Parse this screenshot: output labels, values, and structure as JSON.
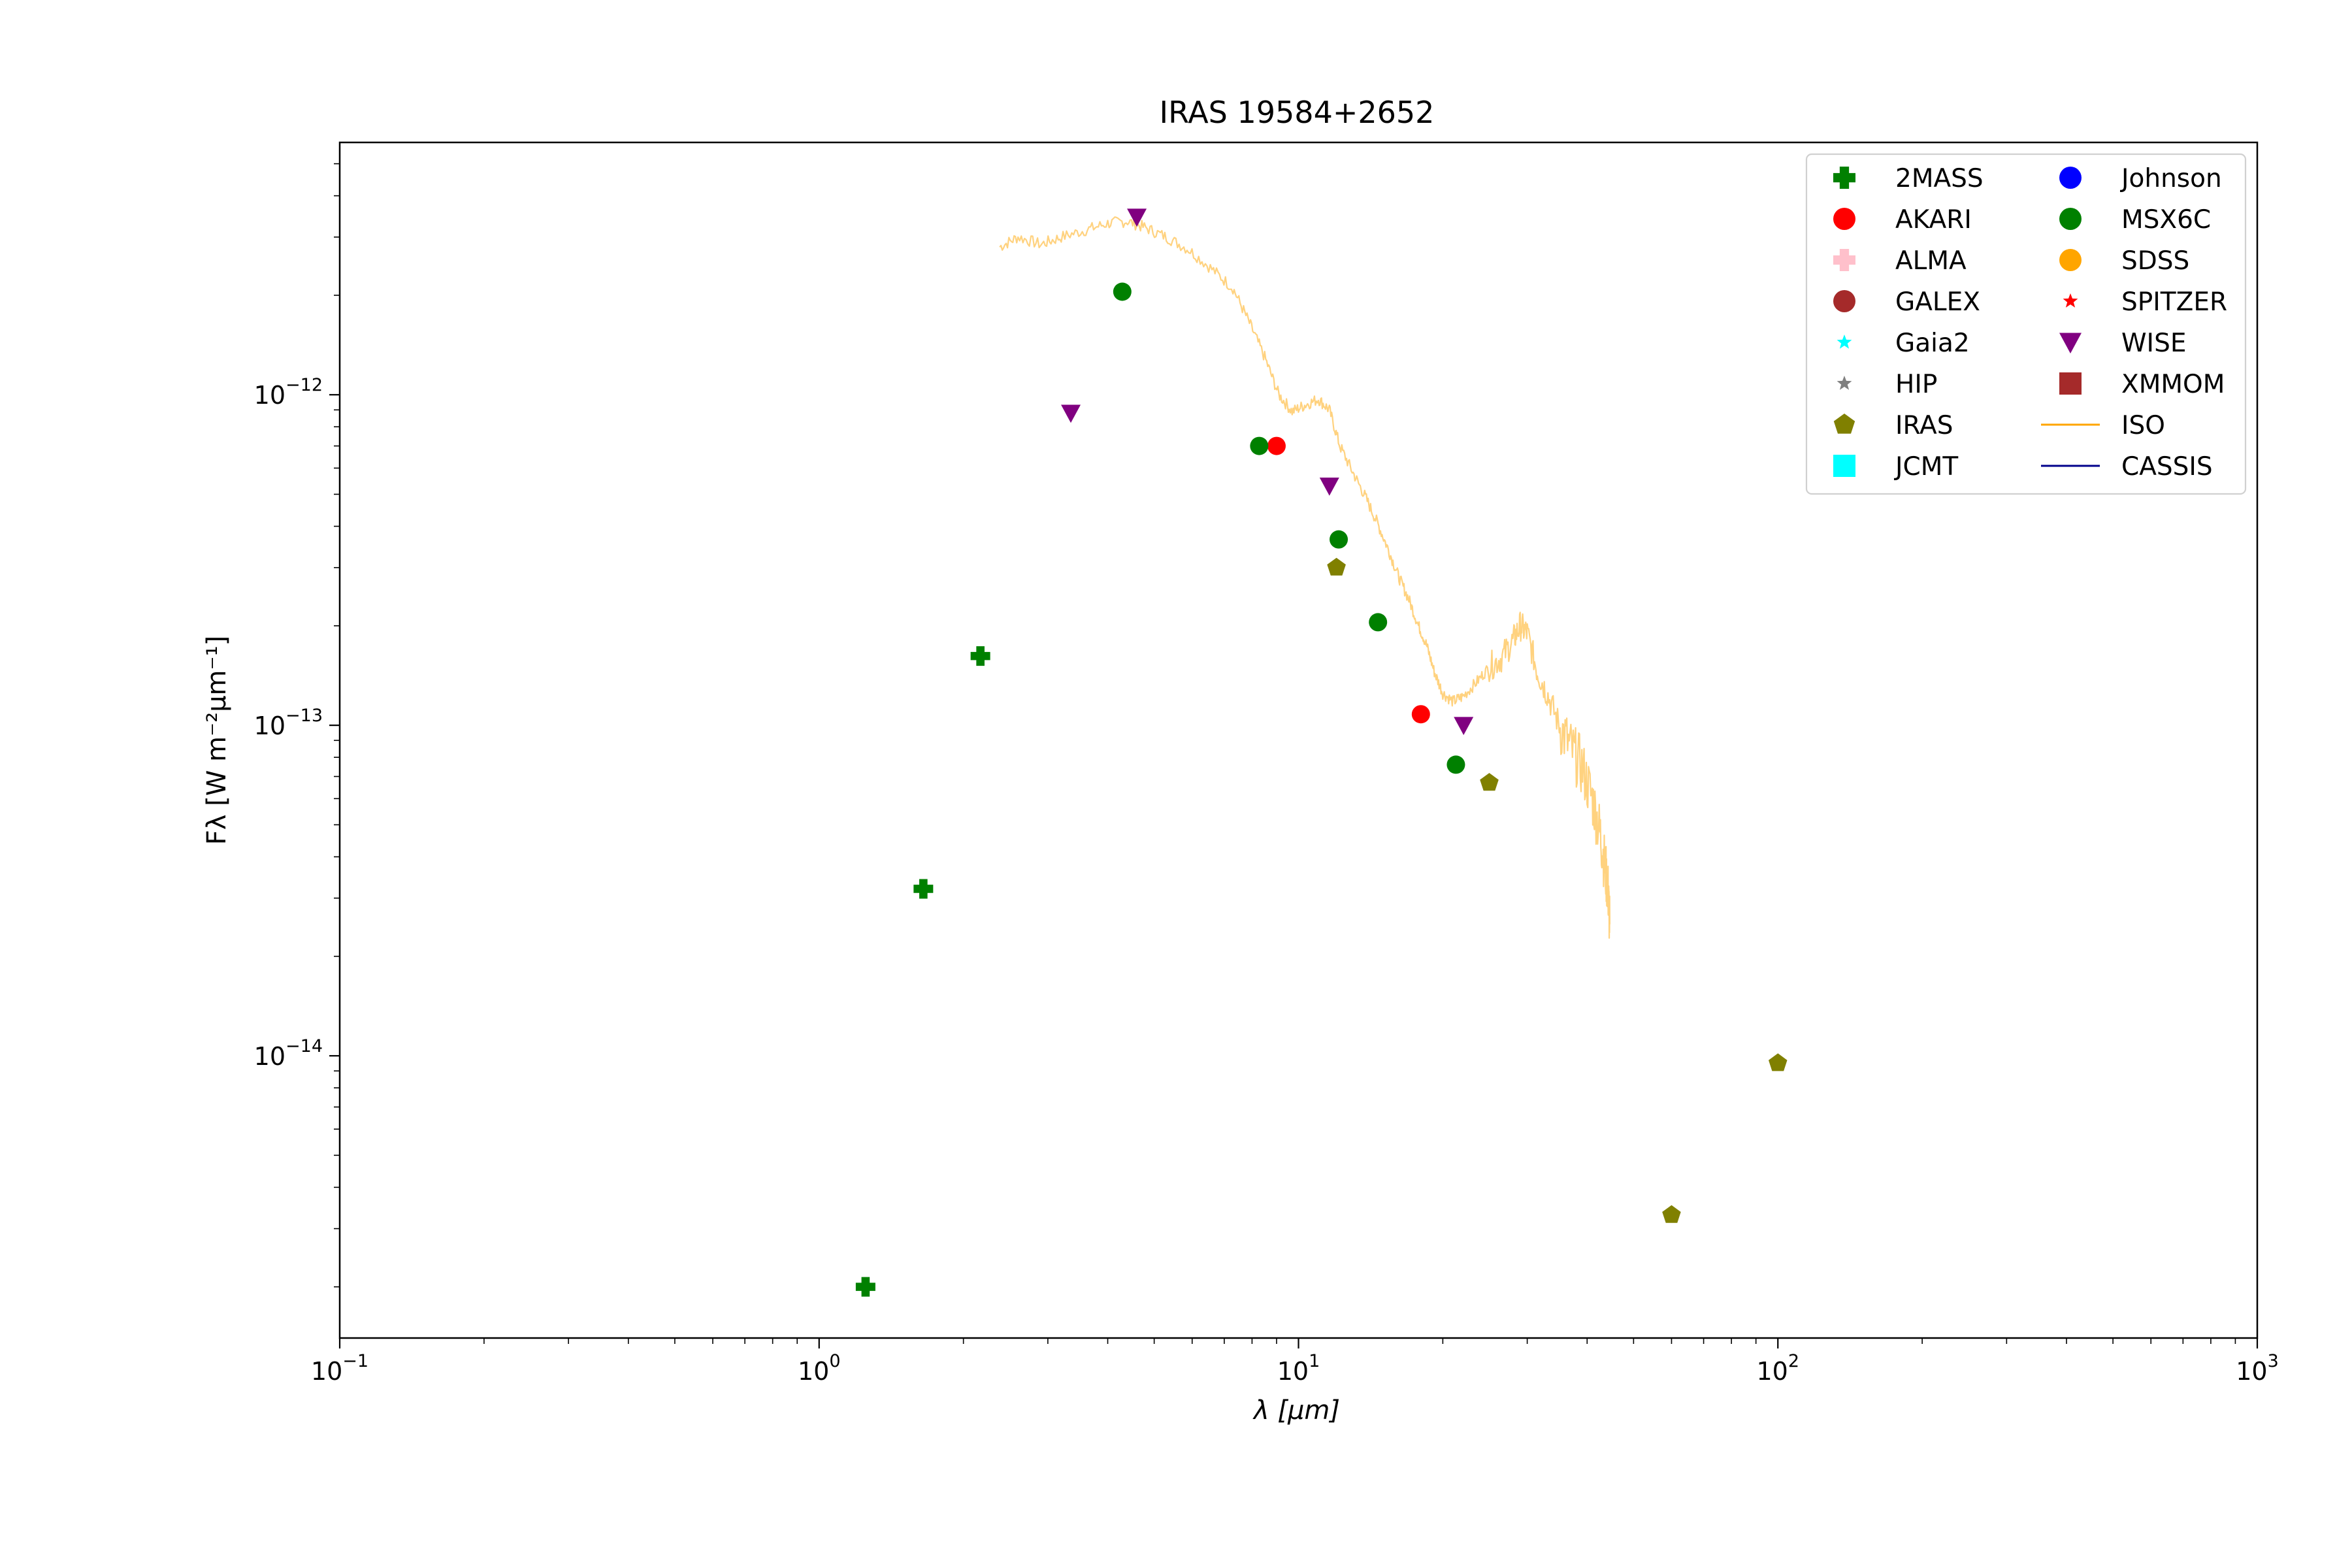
{
  "chart_data": {
    "type": "scatter",
    "title": "IRAS 19584+2652",
    "xlabel": "λ [μm]",
    "ylabel": "Fλ [W m⁻²μm⁻¹]",
    "xscale": "log",
    "yscale": "log",
    "xlim": [
      0.1,
      1000
    ],
    "ylim": [
      1.4e-15,
      5.8e-12
    ],
    "x_ticks": [
      {
        "value": 0.1,
        "base": "10",
        "exp": "−1"
      },
      {
        "value": 1,
        "base": "10",
        "exp": "0"
      },
      {
        "value": 10,
        "base": "10",
        "exp": "1"
      },
      {
        "value": 100,
        "base": "10",
        "exp": "2"
      },
      {
        "value": 1000,
        "base": "10",
        "exp": "3"
      }
    ],
    "y_ticks": [
      {
        "value": 1e-14,
        "base": "10",
        "exp": "−14"
      },
      {
        "value": 1e-13,
        "base": "10",
        "exp": "−13"
      },
      {
        "value": 1e-12,
        "base": "10",
        "exp": "−12"
      }
    ],
    "grid": false,
    "legend_position": "top-right",
    "series": [
      {
        "name": "2MASS",
        "marker": "plus",
        "color": "#008000",
        "points": [
          [
            1.25,
            2e-15
          ],
          [
            1.65,
            3.2e-14
          ],
          [
            2.17,
            1.62e-13
          ]
        ]
      },
      {
        "name": "AKARI",
        "marker": "circle",
        "color": "#ff0000",
        "points": [
          [
            9.0,
            7e-13
          ],
          [
            18.0,
            1.08e-13
          ]
        ]
      },
      {
        "name": "ALMA",
        "marker": "plus",
        "color": "#ffc0cb",
        "points": []
      },
      {
        "name": "GALEX",
        "marker": "circle",
        "color": "#a52a2a",
        "points": []
      },
      {
        "name": "Gaia2",
        "marker": "star",
        "color": "#00ffff",
        "points": []
      },
      {
        "name": "HIP",
        "marker": "star",
        "color": "#808080",
        "points": []
      },
      {
        "name": "IRAS",
        "marker": "pentagon",
        "color": "#808000",
        "points": [
          [
            12,
            3e-13
          ],
          [
            25,
            6.7e-14
          ],
          [
            60,
            3.3e-15
          ],
          [
            100,
            9.5e-15
          ]
        ]
      },
      {
        "name": "JCMT",
        "marker": "square",
        "color": "#00ffff",
        "points": []
      },
      {
        "name": "Johnson",
        "marker": "circle",
        "color": "#0000ff",
        "points": []
      },
      {
        "name": "MSX6C",
        "marker": "circle",
        "color": "#008000",
        "points": [
          [
            4.29,
            2.05e-12
          ],
          [
            8.28,
            7e-13
          ],
          [
            12.13,
            3.65e-13
          ],
          [
            14.65,
            2.05e-13
          ],
          [
            21.3,
            7.6e-14
          ]
        ]
      },
      {
        "name": "SDSS",
        "marker": "circle",
        "color": "#ffa500",
        "points": []
      },
      {
        "name": "SPITZER",
        "marker": "star",
        "color": "#ff0000",
        "points": []
      },
      {
        "name": "WISE",
        "marker": "triangle-down",
        "color": "#800080",
        "points": [
          [
            3.35,
            8.8e-13
          ],
          [
            4.6,
            3.45e-12
          ],
          [
            11.6,
            5.3e-13
          ],
          [
            22.1,
            1e-13
          ]
        ]
      },
      {
        "name": "XMMOM",
        "marker": "square",
        "color": "#a52a2a",
        "points": []
      },
      {
        "name": "ISO",
        "marker": "line",
        "color": "#ffa500",
        "alpha": 0.5,
        "points": [
          [
            2.38,
            2.8e-12
          ],
          [
            2.6,
            3e-12
          ],
          [
            2.9,
            2.85e-12
          ],
          [
            3.2,
            3e-12
          ],
          [
            3.6,
            3.15e-12
          ],
          [
            4.0,
            3.3e-12
          ],
          [
            4.4,
            3.35e-12
          ],
          [
            4.8,
            3.2e-12
          ],
          [
            5.3,
            3e-12
          ],
          [
            5.9,
            2.75e-12
          ],
          [
            6.6,
            2.4e-12
          ],
          [
            7.3,
            2.1e-12
          ],
          [
            7.9,
            1.65e-12
          ],
          [
            8.5,
            1.3e-12
          ],
          [
            9.1,
            1e-12
          ],
          [
            9.7,
            8.9e-13
          ],
          [
            10.3,
            9.3e-13
          ],
          [
            11.0,
            9.7e-13
          ],
          [
            11.6,
            9e-13
          ],
          [
            12.2,
            7e-13
          ],
          [
            13.0,
            5.8e-13
          ],
          [
            13.8,
            4.9e-13
          ],
          [
            14.6,
            4.1e-13
          ],
          [
            15.4,
            3.4e-13
          ],
          [
            16.2,
            2.8e-13
          ],
          [
            17.0,
            2.4e-13
          ],
          [
            17.8,
            2e-13
          ],
          [
            18.5,
            1.75e-13
          ],
          [
            19.2,
            1.45e-13
          ],
          [
            20.0,
            1.25e-13
          ],
          [
            21.0,
            1.18e-13
          ],
          [
            22.0,
            1.22e-13
          ],
          [
            23.5,
            1.35e-13
          ],
          [
            25.0,
            1.5e-13
          ],
          [
            26.5,
            1.6e-13
          ],
          [
            28.0,
            1.8e-13
          ],
          [
            29.0,
            2e-13
          ],
          [
            30.0,
            1.9e-13
          ],
          [
            31.5,
            1.45e-13
          ],
          [
            33.0,
            1.25e-13
          ],
          [
            35.0,
            1e-13
          ],
          [
            37.0,
            8.5e-14
          ],
          [
            39.0,
            7.5e-14
          ],
          [
            41.0,
            6e-14
          ],
          [
            42.5,
            4.8e-14
          ],
          [
            43.5,
            3.8e-14
          ],
          [
            44.2,
            3.2e-14
          ],
          [
            44.6,
            2.5e-14
          ]
        ]
      },
      {
        "name": "CASSIS",
        "marker": "line",
        "color": "#00008b",
        "points": []
      }
    ]
  }
}
